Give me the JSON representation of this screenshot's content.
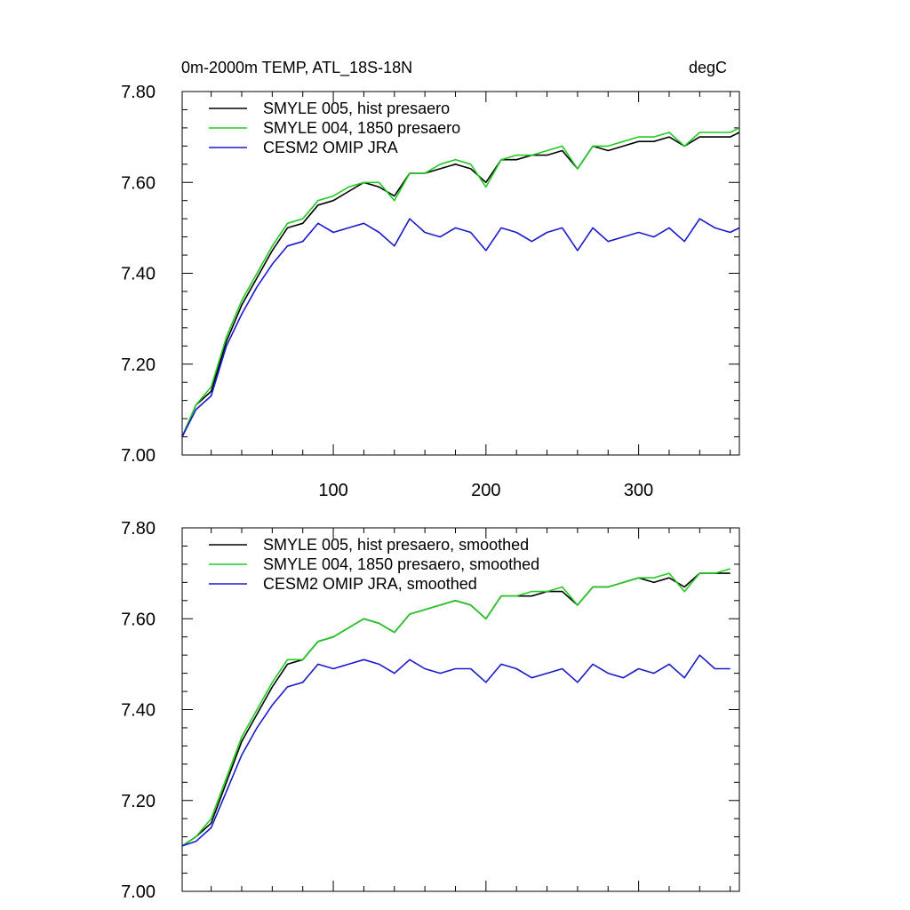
{
  "chart_data": [
    {
      "type": "line",
      "title_left": "0m-2000m TEMP, ATL_18S-18N",
      "title_right": "degC",
      "xlim": [
        1,
        366
      ],
      "ylim": [
        7.0,
        7.8
      ],
      "xticks": [
        100,
        200,
        300
      ],
      "xtick_labels": [
        "100",
        "200",
        "300"
      ],
      "yticks": [
        7.0,
        7.2,
        7.4,
        7.6,
        7.8
      ],
      "ytick_labels": [
        "7.00",
        "7.20",
        "7.40",
        "7.60",
        "7.80"
      ],
      "grid": false,
      "legend_position": "top-left",
      "series": [
        {
          "name": "SMYLE 005, hist presaero",
          "color": "#000000",
          "x": [
            1,
            10,
            20,
            30,
            40,
            50,
            60,
            70,
            80,
            90,
            100,
            110,
            120,
            130,
            140,
            150,
            160,
            170,
            180,
            190,
            200,
            210,
            220,
            230,
            240,
            250,
            260,
            270,
            280,
            290,
            300,
            310,
            320,
            330,
            340,
            350,
            360,
            366
          ],
          "values": [
            7.04,
            7.11,
            7.14,
            7.25,
            7.33,
            7.39,
            7.45,
            7.5,
            7.51,
            7.55,
            7.56,
            7.58,
            7.6,
            7.59,
            7.57,
            7.62,
            7.62,
            7.63,
            7.64,
            7.63,
            7.6,
            7.65,
            7.65,
            7.66,
            7.66,
            7.67,
            7.63,
            7.68,
            7.67,
            7.68,
            7.69,
            7.69,
            7.7,
            7.68,
            7.7,
            7.7,
            7.7,
            7.71
          ]
        },
        {
          "name": "SMYLE 004, 1850 presaero",
          "color": "#22cc22",
          "x": [
            1,
            10,
            20,
            30,
            40,
            50,
            60,
            70,
            80,
            90,
            100,
            110,
            120,
            130,
            140,
            150,
            160,
            170,
            180,
            190,
            200,
            210,
            220,
            230,
            240,
            250,
            260,
            270,
            280,
            290,
            300,
            310,
            320,
            330,
            340,
            350,
            360,
            366
          ],
          "values": [
            7.04,
            7.11,
            7.15,
            7.26,
            7.34,
            7.4,
            7.46,
            7.51,
            7.52,
            7.56,
            7.57,
            7.59,
            7.6,
            7.6,
            7.56,
            7.62,
            7.62,
            7.64,
            7.65,
            7.64,
            7.59,
            7.65,
            7.66,
            7.66,
            7.67,
            7.68,
            7.63,
            7.68,
            7.68,
            7.69,
            7.7,
            7.7,
            7.71,
            7.68,
            7.71,
            7.71,
            7.71,
            7.72
          ]
        },
        {
          "name": "CESM2 OMIP JRA",
          "color": "#1a1acc",
          "x": [
            1,
            10,
            20,
            30,
            40,
            50,
            60,
            70,
            80,
            90,
            100,
            110,
            120,
            130,
            140,
            150,
            160,
            170,
            180,
            190,
            200,
            210,
            220,
            230,
            240,
            250,
            260,
            270,
            280,
            290,
            300,
            310,
            320,
            330,
            340,
            350,
            360,
            366
          ],
          "values": [
            7.04,
            7.1,
            7.13,
            7.24,
            7.31,
            7.37,
            7.42,
            7.46,
            7.47,
            7.51,
            7.49,
            7.5,
            7.51,
            7.49,
            7.46,
            7.52,
            7.49,
            7.48,
            7.5,
            7.49,
            7.45,
            7.5,
            7.49,
            7.47,
            7.49,
            7.5,
            7.45,
            7.5,
            7.47,
            7.48,
            7.49,
            7.48,
            7.5,
            7.47,
            7.52,
            7.5,
            7.49,
            7.5
          ]
        }
      ]
    },
    {
      "type": "line",
      "xlim": [
        1,
        366
      ],
      "ylim": [
        7.0,
        7.8
      ],
      "xticks": [
        100,
        200,
        300
      ],
      "yticks": [
        7.0,
        7.2,
        7.4,
        7.6,
        7.8
      ],
      "ytick_labels": [
        "7.00",
        "7.20",
        "7.40",
        "7.60",
        "7.80"
      ],
      "grid": false,
      "legend_position": "top-left",
      "series": [
        {
          "name": "SMYLE 005, hist presaero, smoothed",
          "color": "#000000",
          "x": [
            1,
            10,
            20,
            30,
            40,
            50,
            60,
            70,
            80,
            90,
            100,
            110,
            120,
            130,
            140,
            150,
            160,
            170,
            180,
            190,
            200,
            210,
            220,
            230,
            240,
            250,
            260,
            270,
            280,
            290,
            300,
            310,
            320,
            330,
            340,
            350,
            360
          ],
          "values": [
            7.1,
            7.12,
            7.15,
            7.24,
            7.33,
            7.39,
            7.45,
            7.5,
            7.51,
            7.55,
            7.56,
            7.58,
            7.6,
            7.59,
            7.57,
            7.61,
            7.62,
            7.63,
            7.64,
            7.63,
            7.6,
            7.65,
            7.65,
            7.65,
            7.66,
            7.66,
            7.63,
            7.67,
            7.67,
            7.68,
            7.69,
            7.68,
            7.69,
            7.67,
            7.7,
            7.7,
            7.7
          ]
        },
        {
          "name": "SMYLE 004, 1850 presaero, smoothed",
          "color": "#22cc22",
          "x": [
            1,
            10,
            20,
            30,
            40,
            50,
            60,
            70,
            80,
            90,
            100,
            110,
            120,
            130,
            140,
            150,
            160,
            170,
            180,
            190,
            200,
            210,
            220,
            230,
            240,
            250,
            260,
            270,
            280,
            290,
            300,
            310,
            320,
            330,
            340,
            350,
            360
          ],
          "values": [
            7.1,
            7.12,
            7.16,
            7.25,
            7.34,
            7.4,
            7.46,
            7.51,
            7.51,
            7.55,
            7.56,
            7.58,
            7.6,
            7.59,
            7.57,
            7.61,
            7.62,
            7.63,
            7.64,
            7.63,
            7.6,
            7.65,
            7.65,
            7.66,
            7.66,
            7.67,
            7.63,
            7.67,
            7.67,
            7.68,
            7.69,
            7.69,
            7.7,
            7.66,
            7.7,
            7.7,
            7.71
          ]
        },
        {
          "name": "CESM2 OMIP JRA, smoothed",
          "color": "#1a1acc",
          "x": [
            1,
            10,
            20,
            30,
            40,
            50,
            60,
            70,
            80,
            90,
            100,
            110,
            120,
            130,
            140,
            150,
            160,
            170,
            180,
            190,
            200,
            210,
            220,
            230,
            240,
            250,
            260,
            270,
            280,
            290,
            300,
            310,
            320,
            330,
            340,
            350,
            360
          ],
          "values": [
            7.1,
            7.11,
            7.14,
            7.22,
            7.3,
            7.36,
            7.41,
            7.45,
            7.46,
            7.5,
            7.49,
            7.5,
            7.51,
            7.5,
            7.48,
            7.51,
            7.49,
            7.48,
            7.49,
            7.49,
            7.46,
            7.5,
            7.49,
            7.47,
            7.48,
            7.49,
            7.46,
            7.5,
            7.48,
            7.47,
            7.49,
            7.48,
            7.5,
            7.47,
            7.52,
            7.49,
            7.49
          ]
        }
      ]
    }
  ]
}
